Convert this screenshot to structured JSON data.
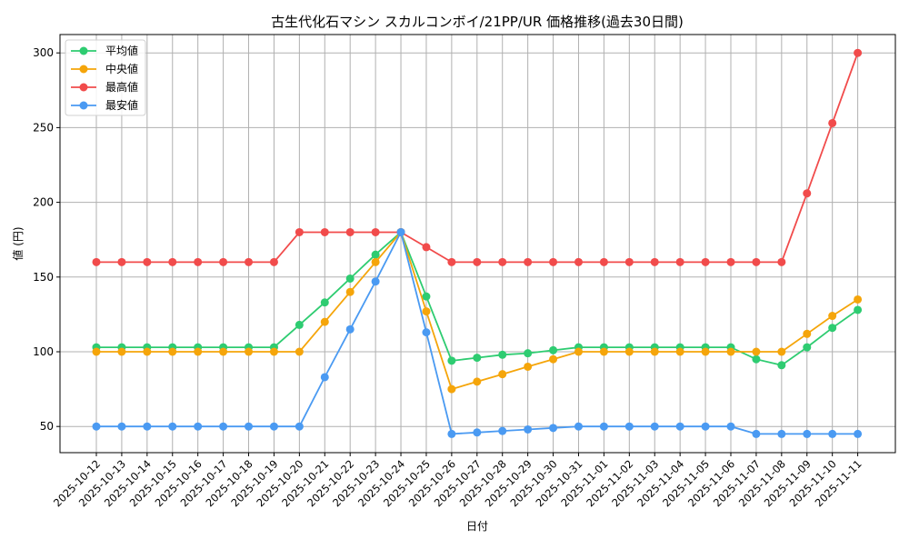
{
  "chart_data": {
    "type": "line",
    "title": "古生代化石マシン スカルコンボイ/21PP/UR 価格推移(過去30日間)",
    "xlabel": "日付",
    "ylabel": "値 (円)",
    "ylim": [
      32,
      312
    ],
    "yticks": [
      50,
      100,
      150,
      200,
      250,
      300
    ],
    "grid": true,
    "legend_position": "upper left",
    "x": [
      "2025-10-12",
      "2025-10-13",
      "2025-10-14",
      "2025-10-15",
      "2025-10-16",
      "2025-10-17",
      "2025-10-18",
      "2025-10-19",
      "2025-10-20",
      "2025-10-21",
      "2025-10-22",
      "2025-10-23",
      "2025-10-24",
      "2025-10-25",
      "2025-10-26",
      "2025-10-27",
      "2025-10-28",
      "2025-10-29",
      "2025-10-30",
      "2025-10-31",
      "2025-11-01",
      "2025-11-02",
      "2025-11-03",
      "2025-11-04",
      "2025-11-05",
      "2025-11-06",
      "2025-11-07",
      "2025-11-08",
      "2025-11-09",
      "2025-11-10",
      "2025-11-11"
    ],
    "series": [
      {
        "name": "平均値",
        "color": "#2ecc71",
        "values": [
          103,
          103,
          103,
          103,
          103,
          103,
          103,
          103,
          118,
          133,
          149,
          165,
          180,
          137,
          94,
          96,
          98,
          99,
          101,
          103,
          103,
          103,
          103,
          103,
          103,
          103,
          95,
          91,
          103,
          116,
          128
        ]
      },
      {
        "name": "中央値",
        "color": "#f5a50a",
        "values": [
          100,
          100,
          100,
          100,
          100,
          100,
          100,
          100,
          100,
          120,
          140,
          160,
          180,
          127,
          75,
          80,
          85,
          90,
          95,
          100,
          100,
          100,
          100,
          100,
          100,
          100,
          100,
          100,
          112,
          124,
          135
        ]
      },
      {
        "name": "最高値",
        "color": "#f14b4b",
        "values": [
          160,
          160,
          160,
          160,
          160,
          160,
          160,
          160,
          180,
          180,
          180,
          180,
          180,
          170,
          160,
          160,
          160,
          160,
          160,
          160,
          160,
          160,
          160,
          160,
          160,
          160,
          160,
          160,
          206,
          253,
          300
        ]
      },
      {
        "name": "最安値",
        "color": "#4a9af2",
        "values": [
          50,
          50,
          50,
          50,
          50,
          50,
          50,
          50,
          50,
          83,
          115,
          147,
          180,
          113,
          45,
          46,
          47,
          48,
          49,
          50,
          50,
          50,
          50,
          50,
          50,
          50,
          45,
          45,
          45,
          45,
          45
        ]
      }
    ]
  }
}
